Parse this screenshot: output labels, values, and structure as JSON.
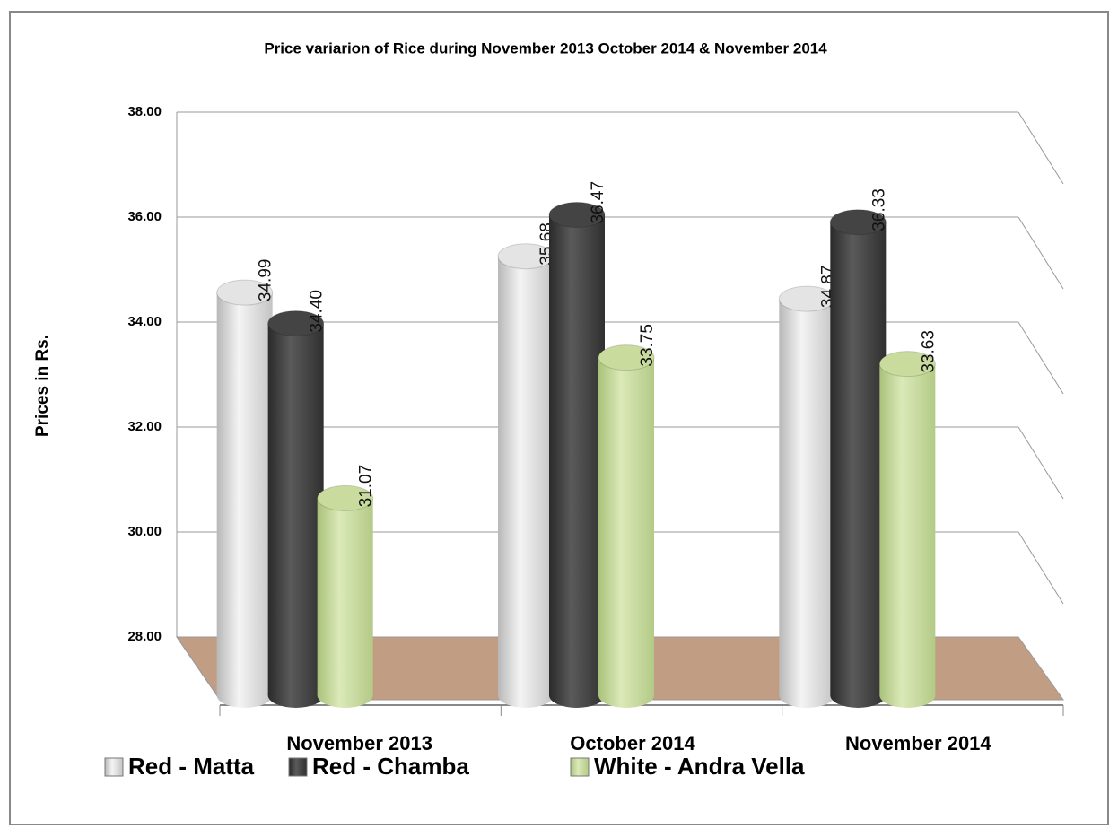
{
  "chart_data": {
    "type": "bar",
    "title": "Price variarion of Rice during November 2013 October 2014 & November 2014",
    "y_label": "Prices in Rs.",
    "categories": [
      "November 2013",
      "October 2014",
      "November 2014"
    ],
    "series": [
      {
        "name": "Red - Matta",
        "color": "#e4e4e4",
        "values": [
          34.99,
          35.68,
          34.87
        ],
        "value_labels": [
          "34.99",
          "35.68",
          "34.87"
        ]
      },
      {
        "name": "Red - Chamba",
        "color": "#444444",
        "values": [
          34.4,
          36.47,
          36.33
        ],
        "value_labels": [
          "34.40",
          "36.47",
          "36.33"
        ]
      },
      {
        "name": "White - Andra Vella",
        "color": "#c9dc9e",
        "values": [
          31.07,
          33.75,
          33.63
        ],
        "value_labels": [
          "31.07",
          "33.75",
          "33.63"
        ]
      }
    ],
    "ylim": [
      28,
      38
    ],
    "yticks": [
      {
        "value": 28,
        "label": "28.00"
      },
      {
        "value": 30,
        "label": "30.00"
      },
      {
        "value": 32,
        "label": "32.00"
      },
      {
        "value": 34,
        "label": "34.00"
      },
      {
        "value": 36,
        "label": "36.00"
      },
      {
        "value": 38,
        "label": "38.00"
      }
    ],
    "grid": true,
    "legend": "bottom"
  }
}
